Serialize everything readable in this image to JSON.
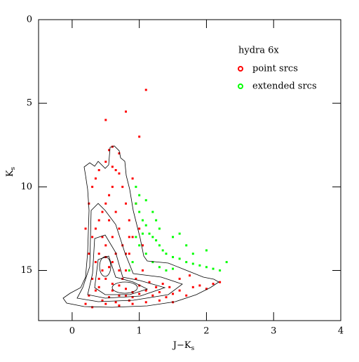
{
  "chart_data": {
    "type": "scatter",
    "xlabel": "J−K",
    "xlabel_sub": "s",
    "ylabel": "K",
    "ylabel_sub": "s",
    "legend_title": "hydra 6x",
    "legend_position": "upper right",
    "xlim": [
      -0.5,
      4
    ],
    "xticks": [
      0,
      1,
      2,
      3,
      4
    ],
    "ylim": [
      0,
      18
    ],
    "yticks": [
      0,
      5,
      10,
      15
    ],
    "y_inverted": true,
    "series": [
      {
        "name": "point srcs",
        "color": "#ff0000",
        "x": [
          0.45,
          0.5,
          0.55,
          0.4,
          0.6,
          0.7,
          0.8,
          0.9,
          1.0,
          1.1,
          1.2,
          1.3,
          1.4,
          1.5,
          1.6,
          1.7,
          1.8,
          1.9,
          2.0,
          2.1,
          0.3,
          0.35,
          0.4,
          0.45,
          0.5,
          0.55,
          0.3,
          0.35,
          0.4,
          0.5,
          0.6,
          0.7,
          0.75,
          0.8,
          0.85,
          0.9,
          0.85,
          0.8,
          0.75,
          0.65,
          0.6,
          0.55,
          0.65,
          0.7,
          0.75,
          0.5,
          0.4,
          0.35,
          0.3,
          0.25,
          0.2,
          0.3,
          0.5,
          0.7,
          0.9,
          1.1,
          1.3,
          1.5,
          0.6,
          0.7,
          0.8,
          0.9,
          1.0,
          0.95,
          1.05,
          1.15,
          0.55,
          0.45,
          0.35,
          0.65,
          0.85,
          1.25,
          1.35,
          1.45,
          0.6,
          0.65,
          0.7,
          0.55,
          0.6,
          0.5,
          0.8,
          1.0,
          1.1,
          0.9,
          0.95,
          1.0,
          1.05,
          0.25,
          0.2,
          0.25,
          2.2,
          1.6,
          1.75,
          0.4,
          0.5,
          0.45,
          0.6,
          0.7,
          0.8,
          0.85
        ],
        "values": [
          15.0,
          15.5,
          14.8,
          16.0,
          16.2,
          16.5,
          16.1,
          16.3,
          16.4,
          16.2,
          16.5,
          16.3,
          16.6,
          16.4,
          16.2,
          16.5,
          16.0,
          15.9,
          16.1,
          15.8,
          13.0,
          12.5,
          12.0,
          11.5,
          11.0,
          10.5,
          10.0,
          9.5,
          9.0,
          8.5,
          8.8,
          9.2,
          10.0,
          11.0,
          12.0,
          13.0,
          14.0,
          15.0,
          15.5,
          14.0,
          13.0,
          12.0,
          11.5,
          12.5,
          13.5,
          13.5,
          14.0,
          14.5,
          15.5,
          16.5,
          17.0,
          17.2,
          17.0,
          17.1,
          17.0,
          16.9,
          16.8,
          16.9,
          15.8,
          15.9,
          16.5,
          16.6,
          15.9,
          15.5,
          15.0,
          15.7,
          16.6,
          16.8,
          16.2,
          16.9,
          16.8,
          16.0,
          15.8,
          16.0,
          10.0,
          9.0,
          8.0,
          7.8,
          7.6,
          6.0,
          5.5,
          7.0,
          4.2,
          9.5,
          11.0,
          12.5,
          13.5,
          11.0,
          12.5,
          14.0,
          15.7,
          15.5,
          15.3,
          15.5,
          14.2,
          13.0,
          14.5,
          15.0,
          14.0,
          13.0
        ]
      },
      {
        "name": "extended srcs",
        "color": "#00ff00",
        "x": [
          0.95,
          1.0,
          0.95,
          1.0,
          1.05,
          1.1,
          1.15,
          1.2,
          1.25,
          1.3,
          1.35,
          1.4,
          1.5,
          1.6,
          1.7,
          1.8,
          1.9,
          2.0,
          2.1,
          2.2,
          1.0,
          1.1,
          1.2,
          1.3,
          1.4,
          1.5,
          0.9,
          0.85,
          0.95,
          1.05,
          1.2,
          1.3,
          1.5,
          1.7,
          1.6,
          1.8,
          2.3,
          2.0,
          1.1,
          1.25
        ],
        "values": [
          10.0,
          10.5,
          11.0,
          11.5,
          12.0,
          12.3,
          12.8,
          13.0,
          13.2,
          13.5,
          13.8,
          14.0,
          14.2,
          14.3,
          14.5,
          14.6,
          14.7,
          14.8,
          14.9,
          15.0,
          13.5,
          14.0,
          14.5,
          14.8,
          15.0,
          14.9,
          14.5,
          15.0,
          13.0,
          12.8,
          11.5,
          12.5,
          13.0,
          13.5,
          12.8,
          14.0,
          14.5,
          13.8,
          10.8,
          12.0
        ]
      }
    ]
  }
}
